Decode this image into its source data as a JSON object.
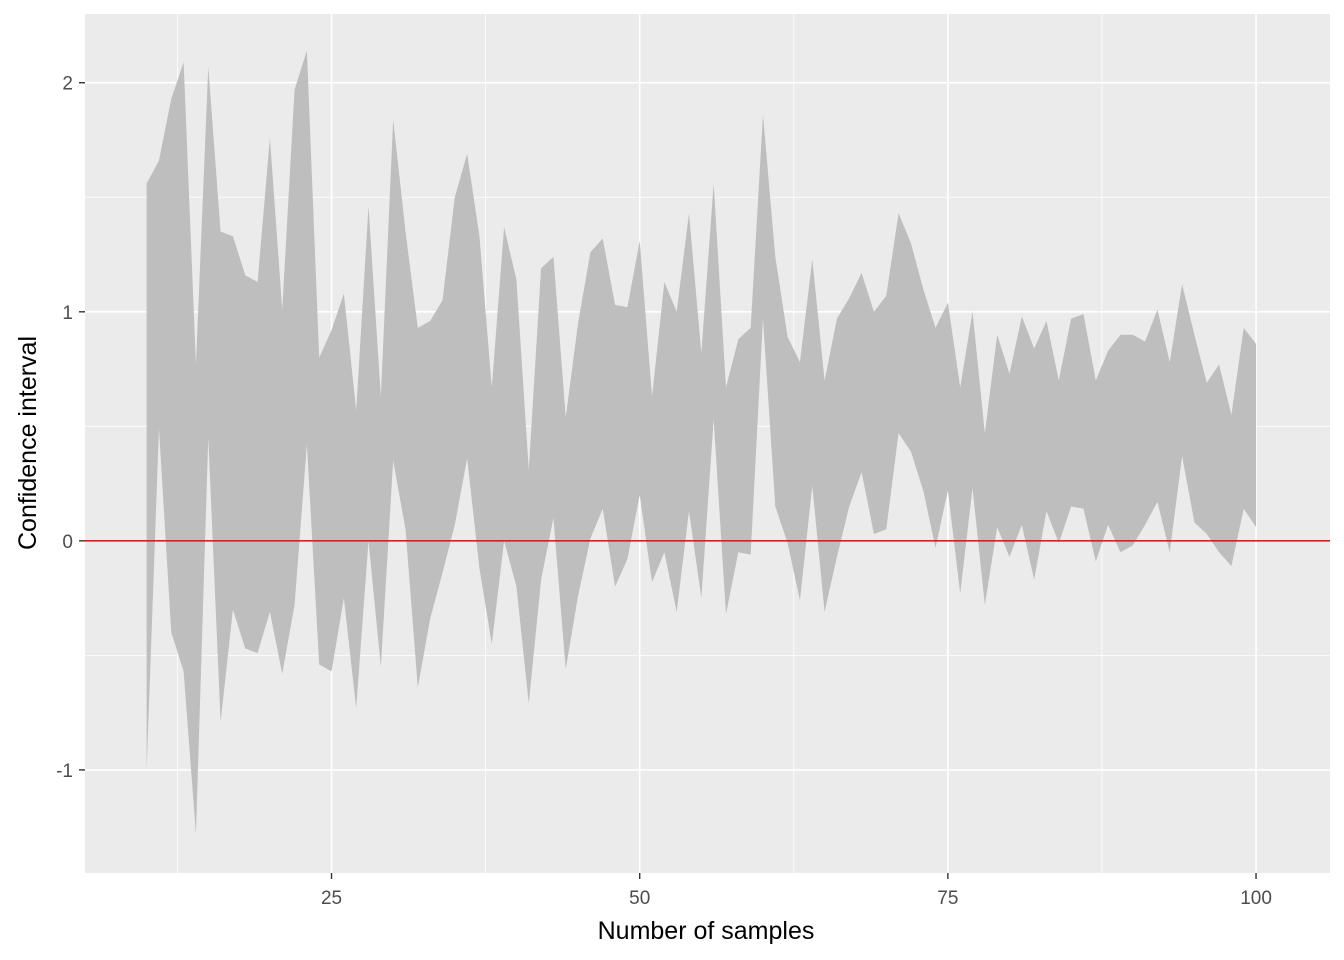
{
  "chart_data": {
    "type": "area",
    "xlabel": "Number of samples",
    "ylabel": "Confidence interval",
    "xlim": [
      5,
      106
    ],
    "ylim": [
      -1.45,
      2.3
    ],
    "x_ticks": [
      25,
      50,
      75,
      100
    ],
    "x_tick_labels": [
      "25",
      "50",
      "75",
      "100"
    ],
    "y_ticks": [
      -1,
      0,
      1,
      2
    ],
    "y_tick_labels": [
      "-1",
      "0",
      "1",
      "2"
    ],
    "grid": true,
    "legend": "none",
    "colors": {
      "panel": "#ebebeb",
      "grid": "#ffffff",
      "ribbon": "#bebebe",
      "reference_line": "#e41a1c"
    },
    "reference_line": {
      "y": 0
    },
    "x": [
      10,
      11,
      12,
      13,
      14,
      15,
      16,
      17,
      18,
      19,
      20,
      21,
      22,
      23,
      24,
      25,
      26,
      27,
      28,
      29,
      30,
      31,
      32,
      33,
      34,
      35,
      36,
      37,
      38,
      39,
      40,
      41,
      42,
      43,
      44,
      45,
      46,
      47,
      48,
      49,
      50,
      51,
      52,
      53,
      54,
      55,
      56,
      57,
      58,
      59,
      60,
      61,
      62,
      63,
      64,
      65,
      66,
      67,
      68,
      69,
      70,
      71,
      72,
      73,
      74,
      75,
      76,
      77,
      78,
      79,
      80,
      81,
      82,
      83,
      84,
      85,
      86,
      87,
      88,
      89,
      90,
      91,
      92,
      93,
      94,
      95,
      96,
      97,
      98,
      99,
      100
    ],
    "upper": [
      1.56,
      1.66,
      1.93,
      2.09,
      0.77,
      2.07,
      1.35,
      1.33,
      1.16,
      1.13,
      1.76,
      1.01,
      1.97,
      2.14,
      0.8,
      0.92,
      1.08,
      0.57,
      1.46,
      0.63,
      1.84,
      1.35,
      0.93,
      0.96,
      1.05,
      1.5,
      1.69,
      1.33,
      0.67,
      1.37,
      1.14,
      0.31,
      1.19,
      1.24,
      0.54,
      0.95,
      1.26,
      1.32,
      1.03,
      1.02,
      1.31,
      0.63,
      1.13,
      1.0,
      1.43,
      0.82,
      1.56,
      0.67,
      0.88,
      0.93,
      1.86,
      1.24,
      0.89,
      0.78,
      1.23,
      0.7,
      0.97,
      1.06,
      1.17,
      1.0,
      1.07,
      1.43,
      1.3,
      1.1,
      0.93,
      1.04,
      0.67,
      1.0,
      0.47,
      0.9,
      0.73,
      0.98,
      0.84,
      0.96,
      0.7,
      0.97,
      0.99,
      0.7,
      0.83,
      0.9,
      0.9,
      0.87,
      1.01,
      0.78,
      1.12,
      0.9,
      0.69,
      0.77,
      0.55,
      0.93,
      0.86
    ],
    "lower": [
      -1.0,
      0.49,
      -0.4,
      -0.57,
      -1.28,
      0.45,
      -0.79,
      -0.3,
      -0.47,
      -0.49,
      -0.31,
      -0.58,
      -0.28,
      0.42,
      -0.54,
      -0.57,
      -0.25,
      -0.73,
      0.0,
      -0.55,
      0.35,
      0.05,
      -0.64,
      -0.34,
      -0.14,
      0.07,
      0.36,
      -0.12,
      -0.45,
      0.0,
      -0.2,
      -0.71,
      -0.17,
      0.1,
      -0.56,
      -0.24,
      0.01,
      0.14,
      -0.2,
      -0.08,
      0.2,
      -0.18,
      -0.05,
      -0.31,
      0.13,
      -0.25,
      0.53,
      -0.32,
      -0.05,
      -0.06,
      0.97,
      0.15,
      -0.01,
      -0.26,
      0.24,
      -0.31,
      -0.07,
      0.15,
      0.3,
      0.03,
      0.05,
      0.47,
      0.39,
      0.22,
      -0.03,
      0.22,
      -0.23,
      0.23,
      -0.28,
      0.06,
      -0.07,
      0.07,
      -0.17,
      0.13,
      -0.01,
      0.15,
      0.14,
      -0.09,
      0.07,
      -0.05,
      -0.02,
      0.07,
      0.17,
      -0.05,
      0.37,
      0.08,
      0.03,
      -0.05,
      -0.11,
      0.14,
      0.06
    ]
  }
}
